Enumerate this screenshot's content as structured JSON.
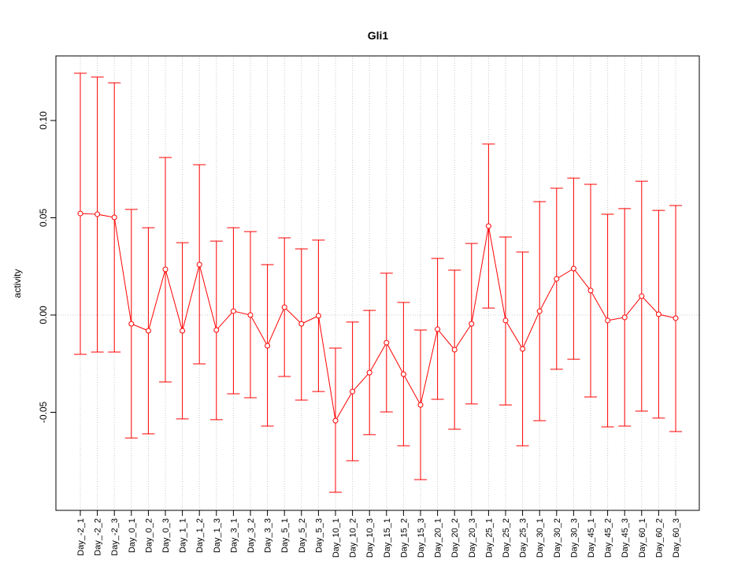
{
  "chart_data": {
    "type": "line",
    "title": "Gli1",
    "xlabel": "",
    "ylabel": "activity",
    "ylim": [
      -0.1004,
      0.1332
    ],
    "yticks": [
      -0.05,
      0.0,
      0.05,
      0.1
    ],
    "ytick_labels": [
      "-0.05",
      "0.00",
      "0.05",
      "0.10"
    ],
    "grid": true,
    "color": "#ff0000",
    "categories": [
      "Day_-2_1",
      "Day_-2_2",
      "Day_-2_3",
      "Day_0_1",
      "Day_0_2",
      "Day_0_3",
      "Day_1_1",
      "Day_1_2",
      "Day_1_3",
      "Day_3_1",
      "Day_3_2",
      "Day_3_3",
      "Day_5_1",
      "Day_5_2",
      "Day_5_3",
      "Day_10_1",
      "Day_10_2",
      "Day_10_3",
      "Day_15_1",
      "Day_15_2",
      "Day_15_3",
      "Day_20_1",
      "Day_20_2",
      "Day_20_3",
      "Day_25_1",
      "Day_25_2",
      "Day_25_3",
      "Day_30_1",
      "Day_30_2",
      "Day_30_3",
      "Day_45_1",
      "Day_45_2",
      "Day_45_3",
      "Day_60_1",
      "Day_60_2",
      "Day_60_3"
    ],
    "values": [
      0.0522,
      0.0518,
      0.0502,
      -0.0045,
      -0.0081,
      0.0235,
      -0.0081,
      0.0259,
      -0.0077,
      0.002,
      0.0,
      -0.0158,
      0.004,
      -0.0045,
      -0.0004,
      -0.0543,
      -0.0393,
      -0.0296,
      -0.0142,
      -0.0304,
      -0.0462,
      -0.0073,
      -0.0178,
      -0.0045,
      0.0457,
      -0.0028,
      -0.0174,
      0.002,
      0.0186,
      0.0239,
      0.0126,
      -0.0028,
      -0.0012,
      0.0097,
      0.0004,
      -0.0016
    ],
    "upper": [
      0.1243,
      0.1223,
      0.1194,
      0.0543,
      0.0449,
      0.081,
      0.0372,
      0.0773,
      0.038,
      0.0449,
      0.0429,
      0.0259,
      0.0397,
      0.034,
      0.0385,
      -0.017,
      -0.0036,
      0.0024,
      0.0215,
      0.0065,
      -0.0077,
      0.0291,
      0.0231,
      0.0368,
      0.0879,
      0.0401,
      0.0324,
      0.0583,
      0.0652,
      0.0704,
      0.0672,
      0.0518,
      0.0547,
      0.0688,
      0.0538,
      0.0563
    ],
    "lower": [
      -0.0202,
      -0.019,
      -0.019,
      -0.0632,
      -0.0611,
      -0.0344,
      -0.0534,
      -0.0251,
      -0.0538,
      -0.0405,
      -0.0425,
      -0.0571,
      -0.0316,
      -0.0437,
      -0.0393,
      -0.0911,
      -0.0749,
      -0.0615,
      -0.0498,
      -0.0672,
      -0.0846,
      -0.0433,
      -0.0587,
      -0.0457,
      0.0036,
      -0.0462,
      -0.0672,
      -0.0543,
      -0.0279,
      -0.0227,
      -0.0421,
      -0.0575,
      -0.0571,
      -0.0494,
      -0.053,
      -0.0599
    ]
  }
}
